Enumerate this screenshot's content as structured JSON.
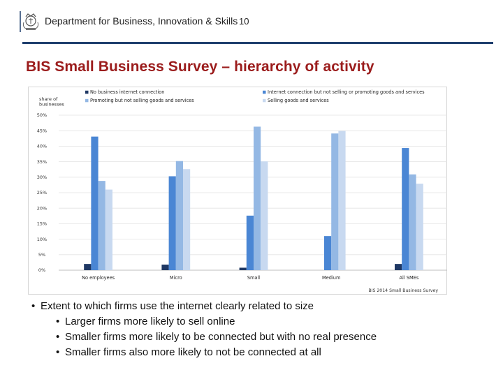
{
  "header": {
    "department": "Department for Business, Innovation & Skills",
    "page_number": "10",
    "crest_icon": "royal-crest-icon",
    "rule_color": "#1f3f6e"
  },
  "slide": {
    "title": "BIS Small Business Survey – hierarchy of activity",
    "title_color": "#9b1c1c"
  },
  "chart_data": {
    "type": "bar",
    "ylabel": "share of businesses",
    "ylim": [
      0,
      50
    ],
    "yticks": [
      "0%",
      "5%",
      "10%",
      "15%",
      "20%",
      "25%",
      "30%",
      "35%",
      "40%",
      "45%",
      "50%"
    ],
    "grid": true,
    "legend_position": "top",
    "categories": [
      "No employees",
      "Micro",
      "Small",
      "Medium",
      "All SMEs"
    ],
    "series": [
      {
        "name": "No business internet connection",
        "color": "#1f3864",
        "values": [
          2,
          1.8,
          0.8,
          0,
          2
        ]
      },
      {
        "name": "Internet connection but not selling or promoting goods and services",
        "color": "#4a86d4",
        "values": [
          43.1,
          30.3,
          17.6,
          11,
          39.4
        ]
      },
      {
        "name": "Promoting but not selling goods and services",
        "color": "#94b8e4",
        "values": [
          28.8,
          35.2,
          46.3,
          44.1,
          30.9
        ]
      },
      {
        "name": "Selling goods and services",
        "color": "#c8d9f0",
        "values": [
          26,
          32.6,
          35.1,
          44.9,
          27.9
        ]
      }
    ],
    "source": "BIS 2014 Small Business Survey"
  },
  "bullets": {
    "main": "Extent to which firms use the internet clearly related to size",
    "sub": [
      "Larger firms more likely to sell online",
      "Smaller firms more likely to be connected but with no real presence",
      "Smaller firms also more likely to not be connected at all"
    ]
  }
}
